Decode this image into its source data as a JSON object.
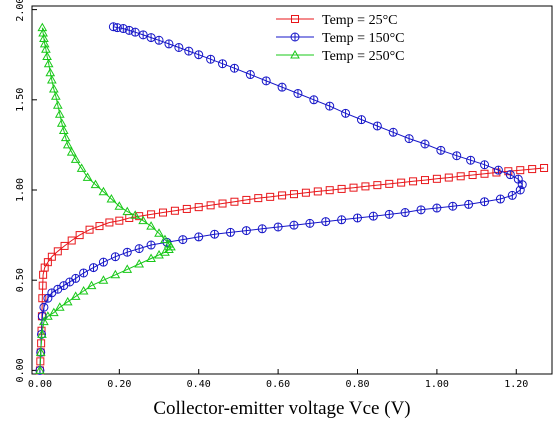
{
  "chart_data": {
    "type": "line",
    "title": "",
    "xlabel": "Collector-emitter voltage Vce (V)",
    "ylabel": "",
    "xlim": [
      -0.02,
      1.29
    ],
    "ylim": [
      -0.02,
      2.02
    ],
    "xticks": [
      "0.00",
      "0.20",
      "0.40",
      "0.60",
      "0.80",
      "1.00",
      "1.20"
    ],
    "yticks": [
      "0.00",
      "0.50",
      "1.00",
      "1.50",
      "2.00"
    ],
    "grid": false,
    "legend": "top-right",
    "series": [
      {
        "name": "Temp = 25°C",
        "color": "#e8161a",
        "marker": "square",
        "x": [
          0.0,
          0.001,
          0.002,
          0.003,
          0.004,
          0.005,
          0.006,
          0.007,
          0.008,
          0.012,
          0.02,
          0.03,
          0.045,
          0.062,
          0.08,
          0.1,
          0.125,
          0.15,
          0.175,
          0.2,
          0.225,
          0.25,
          0.28,
          0.31,
          0.34,
          0.37,
          0.4,
          0.43,
          0.46,
          0.49,
          0.52,
          0.55,
          0.58,
          0.61,
          0.64,
          0.67,
          0.7,
          0.73,
          0.76,
          0.79,
          0.82,
          0.85,
          0.88,
          0.91,
          0.94,
          0.97,
          1.0,
          1.03,
          1.06,
          1.09,
          1.12,
          1.15,
          1.18,
          1.21,
          1.24,
          1.27
        ],
        "y": [
          0.0,
          0.05,
          0.1,
          0.15,
          0.22,
          0.3,
          0.4,
          0.47,
          0.53,
          0.57,
          0.6,
          0.63,
          0.66,
          0.69,
          0.72,
          0.75,
          0.78,
          0.8,
          0.82,
          0.83,
          0.845,
          0.855,
          0.865,
          0.875,
          0.885,
          0.895,
          0.905,
          0.915,
          0.925,
          0.935,
          0.945,
          0.955,
          0.962,
          0.97,
          0.977,
          0.985,
          0.992,
          0.999,
          1.006,
          1.013,
          1.02,
          1.027,
          1.034,
          1.041,
          1.048,
          1.055,
          1.062,
          1.069,
          1.076,
          1.083,
          1.09,
          1.097,
          1.104,
          1.11,
          1.116,
          1.122
        ]
      },
      {
        "name": "Temp = 150°C",
        "color": "#1515c8",
        "marker": "circle",
        "x": [
          0.0,
          0.002,
          0.004,
          0.006,
          0.01,
          0.02,
          0.03,
          0.045,
          0.06,
          0.075,
          0.09,
          0.11,
          0.135,
          0.16,
          0.19,
          0.22,
          0.25,
          0.28,
          0.32,
          0.36,
          0.4,
          0.44,
          0.48,
          0.52,
          0.56,
          0.6,
          0.64,
          0.68,
          0.72,
          0.76,
          0.8,
          0.84,
          0.88,
          0.92,
          0.96,
          1.0,
          1.04,
          1.08,
          1.12,
          1.16,
          1.19,
          1.21,
          1.215,
          1.205,
          1.185,
          1.155,
          1.12,
          1.085,
          1.05,
          1.01,
          0.97,
          0.93,
          0.89,
          0.85,
          0.81,
          0.77,
          0.73,
          0.69,
          0.65,
          0.61,
          0.57,
          0.53,
          0.49,
          0.46,
          0.43,
          0.4,
          0.375,
          0.35,
          0.325,
          0.3,
          0.28,
          0.26,
          0.24,
          0.225,
          0.21,
          0.195,
          0.185
        ],
        "y": [
          0.0,
          0.1,
          0.2,
          0.3,
          0.35,
          0.4,
          0.43,
          0.45,
          0.47,
          0.49,
          0.51,
          0.54,
          0.57,
          0.6,
          0.63,
          0.655,
          0.675,
          0.695,
          0.71,
          0.725,
          0.74,
          0.755,
          0.765,
          0.775,
          0.785,
          0.795,
          0.805,
          0.815,
          0.825,
          0.835,
          0.845,
          0.855,
          0.865,
          0.875,
          0.89,
          0.9,
          0.91,
          0.92,
          0.935,
          0.95,
          0.97,
          1.0,
          1.03,
          1.06,
          1.085,
          1.11,
          1.14,
          1.165,
          1.19,
          1.22,
          1.255,
          1.285,
          1.32,
          1.355,
          1.39,
          1.425,
          1.465,
          1.5,
          1.535,
          1.57,
          1.605,
          1.64,
          1.675,
          1.7,
          1.725,
          1.75,
          1.77,
          1.79,
          1.81,
          1.83,
          1.845,
          1.86,
          1.875,
          1.885,
          1.895,
          1.9,
          1.905
        ]
      },
      {
        "name": "Temp = 250°C",
        "color": "#18c818",
        "marker": "triangle",
        "x": [
          0.0,
          0.002,
          0.005,
          0.01,
          0.02,
          0.035,
          0.05,
          0.07,
          0.09,
          0.11,
          0.13,
          0.16,
          0.19,
          0.22,
          0.25,
          0.28,
          0.3,
          0.315,
          0.325,
          0.33,
          0.325,
          0.315,
          0.3,
          0.28,
          0.26,
          0.24,
          0.22,
          0.2,
          0.18,
          0.16,
          0.14,
          0.12,
          0.105,
          0.09,
          0.08,
          0.07,
          0.065,
          0.06,
          0.055,
          0.05,
          0.045,
          0.04,
          0.035,
          0.03,
          0.026,
          0.022,
          0.018,
          0.015,
          0.012,
          0.01,
          0.008,
          0.006
        ],
        "y": [
          0.0,
          0.1,
          0.2,
          0.27,
          0.3,
          0.32,
          0.35,
          0.38,
          0.41,
          0.44,
          0.47,
          0.5,
          0.53,
          0.56,
          0.59,
          0.62,
          0.64,
          0.655,
          0.67,
          0.685,
          0.7,
          0.725,
          0.76,
          0.8,
          0.83,
          0.86,
          0.88,
          0.91,
          0.95,
          0.99,
          1.03,
          1.07,
          1.12,
          1.17,
          1.21,
          1.25,
          1.29,
          1.33,
          1.37,
          1.42,
          1.47,
          1.52,
          1.56,
          1.61,
          1.65,
          1.7,
          1.74,
          1.78,
          1.81,
          1.84,
          1.87,
          1.9
        ]
      }
    ]
  }
}
